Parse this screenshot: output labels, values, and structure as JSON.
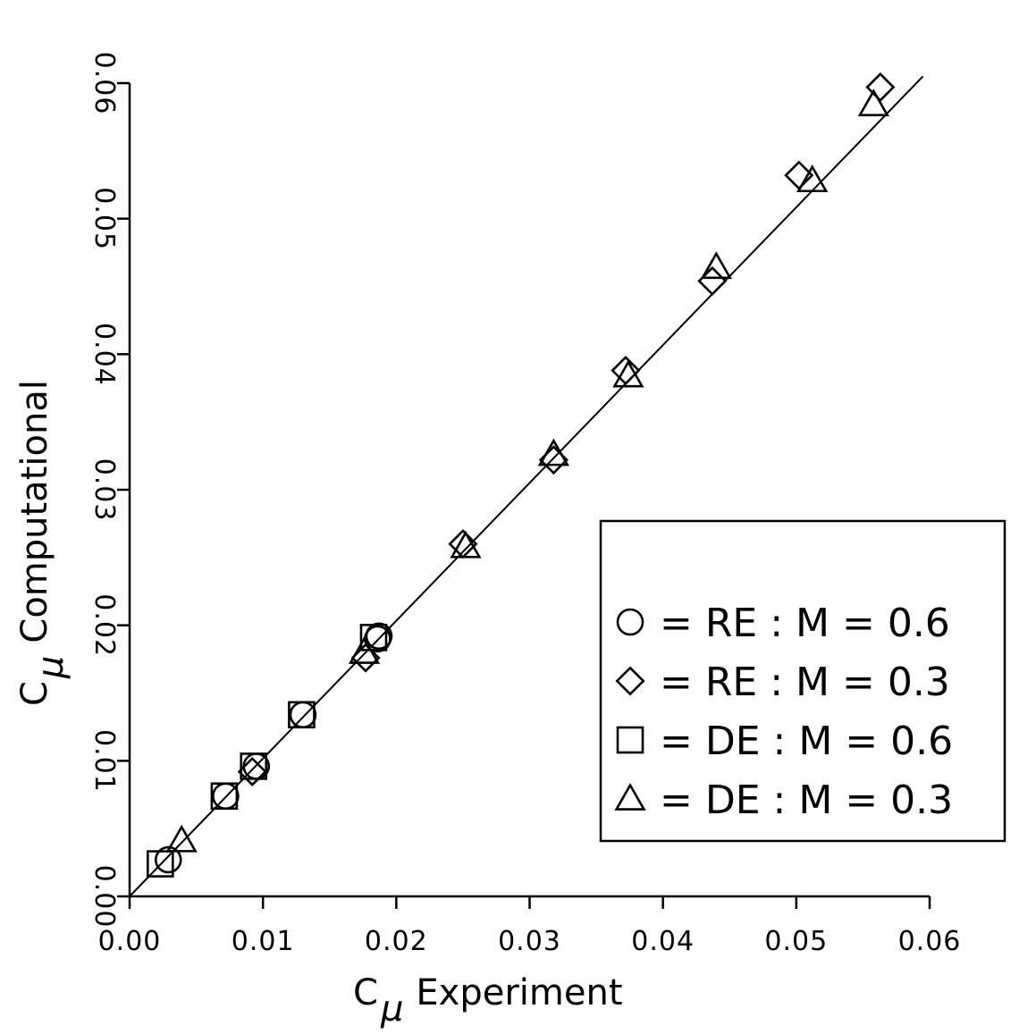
{
  "chart_data": {
    "type": "scatter",
    "title": "",
    "xlabel": {
      "prefix": "C",
      "sub": "μ",
      "rest": "Experiment"
    },
    "ylabel": {
      "prefix": "C",
      "sub": "μ",
      "rest": "Computational"
    },
    "xlim": [
      0,
      0.06
    ],
    "ylim": [
      0,
      0.06
    ],
    "xticks": [
      "0.00",
      "0.01",
      "0.02",
      "0.03",
      "0.04",
      "0.05",
      "0.06"
    ],
    "yticks": [
      "0.00",
      "0.01",
      "0.02",
      "0.03",
      "0.04",
      "0.05",
      "0.06"
    ],
    "grid": false,
    "legend_position": "lower-right",
    "reference_line": {
      "x": [
        0,
        0.0595
      ],
      "y": [
        0,
        0.0605
      ]
    },
    "series": [
      {
        "name": "= RE : M = 0.6",
        "marker": "circle",
        "points": [
          [
            0.0029,
            0.0027
          ],
          [
            0.0072,
            0.0074
          ],
          [
            0.0095,
            0.0096
          ],
          [
            0.013,
            0.0134
          ],
          [
            0.0187,
            0.0192
          ],
          [
            0.0186,
            0.019
          ]
        ]
      },
      {
        "name": "= RE : M = 0.3",
        "marker": "diamond",
        "points": [
          [
            0.0092,
            0.0092
          ],
          [
            0.0177,
            0.0176
          ],
          [
            0.025,
            0.026
          ],
          [
            0.0318,
            0.0322
          ],
          [
            0.0372,
            0.0388
          ],
          [
            0.0437,
            0.0454
          ],
          [
            0.0502,
            0.0532
          ],
          [
            0.0563,
            0.0597
          ]
        ]
      },
      {
        "name": "= DE : M = 0.6",
        "marker": "square",
        "points": [
          [
            0.0023,
            0.0024
          ],
          [
            0.0071,
            0.0074
          ],
          [
            0.0093,
            0.0096
          ],
          [
            0.0129,
            0.0134
          ],
          [
            0.0183,
            0.0191
          ]
        ]
      },
      {
        "name": "= DE : M = 0.3",
        "marker": "triangle",
        "points": [
          [
            0.0039,
            0.0041
          ],
          [
            0.0176,
            0.018
          ],
          [
            0.0252,
            0.0258
          ],
          [
            0.0318,
            0.0326
          ],
          [
            0.0374,
            0.0384
          ],
          [
            0.044,
            0.0464
          ],
          [
            0.0512,
            0.0528
          ],
          [
            0.0558,
            0.0584
          ]
        ]
      }
    ]
  }
}
